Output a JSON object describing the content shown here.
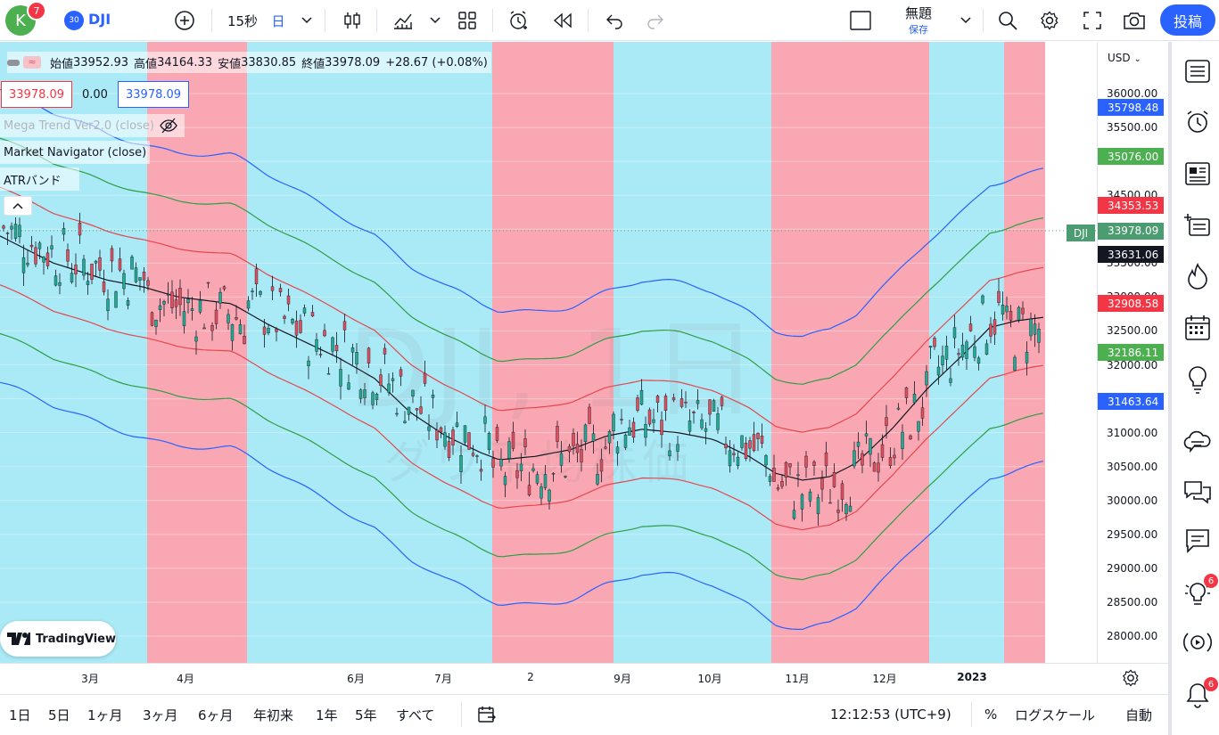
{
  "topbar": {
    "avatar_letter": "K",
    "avatar_badge": "7",
    "symbol_badge": "30",
    "symbol": "DJI",
    "interval": "15秒",
    "timeframe": "日",
    "layout_name": "無題",
    "layout_status": "保存",
    "publish_label": "投稿"
  },
  "legend": {
    "open_label": "始値",
    "open": "33952.93",
    "high_label": "高値",
    "high": "34164.33",
    "low_label": "安値",
    "low": "33830.85",
    "close_label": "終値",
    "close": "33978.09",
    "change": "+28.67 (+0.08%)",
    "box1": "33978.09",
    "box2": "0.00",
    "box3": "33978.09",
    "indicator1": "Mega Trend Ver2.0 (close)",
    "indicator2": "Market Navigator (close)",
    "indicator3": "ATRバンド"
  },
  "watermark": {
    "symbol": "DJI, 1日",
    "name": "ダウ平均株価"
  },
  "price_axis": {
    "currency": "USD",
    "labels": [
      "36000.00",
      "35500.00",
      "35000.00",
      "34500.00",
      "34000.00",
      "33500.00",
      "33000.00",
      "32500.00",
      "32000.00",
      "31500.00",
      "31000.00",
      "30500.00",
      "30000.00",
      "29500.00",
      "29000.00",
      "28500.00",
      "28000.00"
    ],
    "tags": [
      {
        "value": "35798.48",
        "color": "#2962ff"
      },
      {
        "value": "35076.00",
        "color": "#4caf50"
      },
      {
        "value": "34353.53",
        "color": "#f23645"
      },
      {
        "value": "33978.09",
        "color": "#4c9c72"
      },
      {
        "value": "33631.06",
        "color": "#131722"
      },
      {
        "value": "32908.58",
        "color": "#f23645"
      },
      {
        "value": "32186.11",
        "color": "#4caf50"
      },
      {
        "value": "31463.64",
        "color": "#2962ff"
      }
    ],
    "dji_tag": "DJI"
  },
  "time_axis": [
    "3月",
    "4月",
    "6月",
    "7月",
    "2",
    "9月",
    "10月",
    "11月",
    "12月",
    "2023"
  ],
  "tv_logo_text": "TradingView",
  "bottom": {
    "ranges": [
      "1日",
      "5日",
      "1ヶ月",
      "3ヶ月",
      "6ヶ月",
      "年初来",
      "1年",
      "5年",
      "すべて"
    ],
    "clock": "12:12:53 (UTC+9)",
    "percent": "%",
    "log": "ログスケール",
    "auto": "自動"
  },
  "sidebar_badges": {
    "ideas": "6",
    "alerts": "6"
  },
  "chart_data": {
    "type": "candlestick",
    "symbol": "DJI",
    "interval": "1日",
    "ylim": [
      27700,
      36300
    ],
    "backgrounds": [
      {
        "from": 0,
        "to": 165,
        "state": "up"
      },
      {
        "from": 165,
        "to": 277,
        "state": "down"
      },
      {
        "from": 277,
        "to": 552,
        "state": "up"
      },
      {
        "from": 552,
        "to": 688,
        "state": "down"
      },
      {
        "from": 688,
        "to": 865,
        "state": "up"
      },
      {
        "from": 865,
        "to": 1042,
        "state": "down"
      },
      {
        "from": 1042,
        "to": 1126,
        "state": "up"
      },
      {
        "from": 1126,
        "to": 1172,
        "state": "down"
      }
    ],
    "background_colors": {
      "up": "#a9eaf6",
      "down": "#f9a8b3"
    },
    "x_positions_px": [],
    "midline": [
      [
        0,
        33900
      ],
      [
        60,
        33500
      ],
      [
        120,
        33250
      ],
      [
        160,
        33150
      ],
      [
        200,
        33000
      ],
      [
        260,
        32900
      ],
      [
        300,
        32600
      ],
      [
        340,
        32350
      ],
      [
        380,
        32100
      ],
      [
        420,
        31800
      ],
      [
        460,
        31300
      ],
      [
        500,
        30950
      ],
      [
        540,
        30700
      ],
      [
        560,
        30600
      ],
      [
        600,
        30650
      ],
      [
        640,
        30750
      ],
      [
        680,
        30950
      ],
      [
        720,
        31050
      ],
      [
        760,
        31000
      ],
      [
        800,
        30900
      ],
      [
        840,
        30650
      ],
      [
        870,
        30400
      ],
      [
        900,
        30300
      ],
      [
        930,
        30350
      ],
      [
        960,
        30550
      ],
      [
        1000,
        31050
      ],
      [
        1040,
        31650
      ],
      [
        1080,
        32150
      ],
      [
        1110,
        32550
      ],
      [
        1140,
        32650
      ],
      [
        1170,
        32700
      ]
    ],
    "close": "33978.09"
  }
}
